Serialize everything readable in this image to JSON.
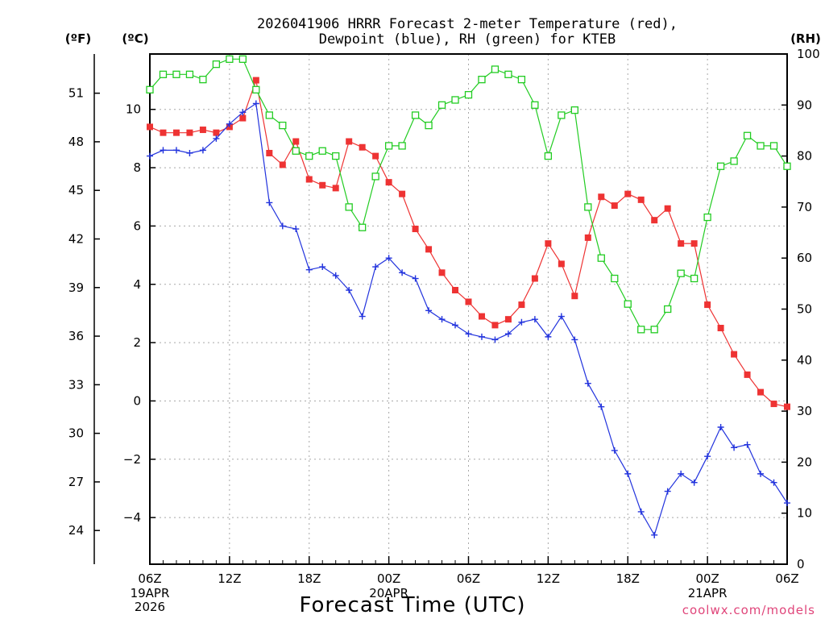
{
  "chart_data": {
    "type": "line",
    "title": [
      "2026041906 HRRR Forecast 2-meter Temperature (red),",
      "Dewpoint (blue), RH (green) for KTEB"
    ],
    "xlabel": "Forecast Time (UTC)",
    "units": {
      "fahrenheit": "(ºF)",
      "celsius": "(ºC)",
      "rh": "(RH)"
    },
    "credit": "coolwx.com/models",
    "x_ticks": [
      {
        "hour": 0,
        "label": "06Z",
        "sub": [
          "19APR",
          "2026"
        ]
      },
      {
        "hour": 6,
        "label": "12Z",
        "sub": []
      },
      {
        "hour": 12,
        "label": "18Z",
        "sub": []
      },
      {
        "hour": 18,
        "label": "00Z",
        "sub": [
          "20APR"
        ]
      },
      {
        "hour": 24,
        "label": "06Z",
        "sub": []
      },
      {
        "hour": 30,
        "label": "12Z",
        "sub": []
      },
      {
        "hour": 36,
        "label": "18Z",
        "sub": []
      },
      {
        "hour": 42,
        "label": "00Z",
        "sub": [
          "21APR"
        ]
      },
      {
        "hour": 48,
        "label": "06Z",
        "sub": []
      }
    ],
    "celsius_axis": {
      "min": -5.6,
      "max": 11.9,
      "ticks": [
        "10",
        "8",
        "6",
        "4",
        "2",
        "0",
        "−2",
        "−4"
      ],
      "tick_values": [
        10,
        8,
        6,
        4,
        2,
        0,
        -2,
        -4
      ]
    },
    "fahrenheit_axis": {
      "ticks": [
        "51",
        "48",
        "45",
        "42",
        "39",
        "36",
        "33",
        "30",
        "27",
        "24"
      ],
      "tick_values": [
        51,
        48,
        45,
        42,
        39,
        36,
        33,
        30,
        27,
        24
      ]
    },
    "rh_axis": {
      "min": 0,
      "max": 100,
      "ticks": [
        "100",
        "90",
        "80",
        "70",
        "60",
        "50",
        "40",
        "30",
        "20",
        "10",
        "0"
      ],
      "tick_values": [
        100,
        90,
        80,
        70,
        60,
        50,
        40,
        30,
        20,
        10,
        0
      ]
    },
    "grid": true,
    "x_hours": [
      0,
      1,
      2,
      3,
      4,
      5,
      6,
      7,
      8,
      9,
      10,
      11,
      12,
      13,
      14,
      15,
      16,
      17,
      18,
      19,
      20,
      21,
      22,
      23,
      24,
      25,
      26,
      27,
      28,
      29,
      30,
      31,
      32,
      33,
      34,
      35,
      36,
      37,
      38,
      39,
      40,
      41,
      42,
      43,
      44,
      45,
      46,
      47,
      48
    ],
    "series": [
      {
        "name": "2-meter Temperature",
        "axis": "celsius",
        "color": "#ee3333",
        "marker": "filled-square",
        "values": [
          9.4,
          9.2,
          9.2,
          9.2,
          9.3,
          9.2,
          9.4,
          9.7,
          11.0,
          8.5,
          8.1,
          8.9,
          7.6,
          7.4,
          7.3,
          8.9,
          8.7,
          8.4,
          7.5,
          7.1,
          5.9,
          5.2,
          4.4,
          3.8,
          3.4,
          2.9,
          2.6,
          2.8,
          3.3,
          4.2,
          5.4,
          4.7,
          3.6,
          5.6,
          7.0,
          6.7,
          7.1,
          6.9,
          6.2,
          6.6,
          5.4,
          5.4,
          3.3,
          2.5,
          1.6,
          0.9,
          0.3,
          -0.1,
          -0.2
        ]
      },
      {
        "name": "Dewpoint",
        "axis": "celsius",
        "color": "#2233dd",
        "marker": "plus",
        "values": [
          8.4,
          8.6,
          8.6,
          8.5,
          8.6,
          9.0,
          9.5,
          9.9,
          10.2,
          6.8,
          6.0,
          5.9,
          4.5,
          4.6,
          4.3,
          3.8,
          2.9,
          4.6,
          4.9,
          4.4,
          4.2,
          3.1,
          2.8,
          2.6,
          2.3,
          2.2,
          2.1,
          2.3,
          2.7,
          2.8,
          2.2,
          2.9,
          2.1,
          0.6,
          -0.2,
          -1.7,
          -2.5,
          -3.8,
          -4.6,
          -3.1,
          -2.5,
          -2.8,
          -1.9,
          -0.9,
          -1.6,
          -1.5,
          -2.5,
          -2.8,
          -3.5
        ]
      },
      {
        "name": "RH",
        "axis": "rh",
        "color": "#22cc22",
        "marker": "open-square",
        "values": [
          93,
          96,
          96,
          96,
          95,
          98,
          99,
          99,
          93,
          88,
          86,
          81,
          80,
          81,
          80,
          70,
          66,
          76,
          82,
          82,
          88,
          86,
          90,
          91,
          92,
          95,
          97,
          96,
          95,
          90,
          80,
          88,
          89,
          70,
          60,
          56,
          51,
          46,
          46,
          50,
          57,
          56,
          68,
          78,
          79,
          84,
          82,
          82,
          78
        ]
      }
    ]
  }
}
